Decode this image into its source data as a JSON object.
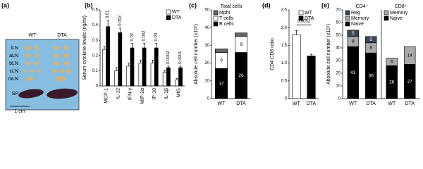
{
  "chart_data": [
    {
      "type": "image",
      "panel": "(a)",
      "columns": [
        "WT",
        "DTA"
      ],
      "rows": [
        "iLN",
        "aLN",
        "bLN",
        "cLN",
        "mLN",
        "SP"
      ],
      "scale_label": "1 cm"
    },
    {
      "type": "bar",
      "panel": "(b)",
      "ylabel": "Serum cytokine levels (ng/ml)",
      "categories": [
        "MCP-1",
        "IL-12",
        "IFN-γ",
        "MIP-1α",
        "IP-10",
        "IL-1β",
        "MIG"
      ],
      "series": [
        {
          "name": "WT",
          "color": "#ffffff",
          "values": [
            0.24,
            0.1,
            0.13,
            0.15,
            0.15,
            0.09,
            0.04
          ],
          "errors": [
            0.02,
            0.02,
            0.02,
            0.02,
            0.02,
            0.01,
            0.01
          ]
        },
        {
          "name": "DTA",
          "color": "#000000",
          "values": [
            0.39,
            0.35,
            0.25,
            0.25,
            0.25,
            0.12,
            0.12
          ],
          "errors": [
            0.04,
            0.03,
            0.03,
            0.03,
            0.03,
            0.01,
            0.01
          ]
        }
      ],
      "annotations": [
        "0.01",
        "0.002",
        "0.02",
        "0.002",
        "0.04",
        "0.0002",
        "0.0001"
      ],
      "ylim": [
        0,
        0.5
      ],
      "yticks": [
        0,
        0.1,
        0.2,
        0.3,
        0.4,
        0.5
      ]
    },
    {
      "type": "stacked_bar",
      "panel": "(c)",
      "title": "Total cells",
      "ylabel": "Absolute cell number (x10⁷)",
      "categories": [
        "WT",
        "DTA"
      ],
      "series": [
        {
          "name": "B cells",
          "color": "#000000",
          "values": [
            17,
            26
          ]
        },
        {
          "name": "T cells",
          "color": "#ffffff",
          "values": [
            9,
            9
          ]
        },
        {
          "name": "Mphi",
          "color": "#666666",
          "values": [
            2,
            2
          ],
          "value_labels": [
            "2",
            null
          ]
        }
      ],
      "ylim": [
        0,
        50
      ],
      "yticks": [
        0,
        10,
        20,
        30,
        40,
        50
      ]
    },
    {
      "type": "bar",
      "panel": "(d)",
      "ylabel": "CD4:CD8 ratio",
      "categories": [
        "WT",
        "DTA"
      ],
      "values": [
        1.8,
        1.2
      ],
      "errors": [
        0.12,
        0.05
      ],
      "colors": [
        "#ffffff",
        "#000000"
      ],
      "annotation": "0.0002",
      "ylim": [
        0,
        2.5
      ],
      "yticks": [
        0,
        0.5,
        {
          "value": 1,
          "label": "1.0"
        },
        1.5,
        {
          "value": 2,
          "label": "2.0"
        },
        2.5
      ]
    },
    {
      "type": "grouped_stacked_bar",
      "panel": "(e)",
      "ylabel": "Absolute cell number (x10⁷)",
      "groups": [
        {
          "name": "CD4⁺",
          "categories": [
            "WT",
            "DTA"
          ],
          "series": [
            {
              "name": "Naive",
              "color": "#000000",
              "values": [
                41,
                36
              ]
            },
            {
              "name": "Memory",
              "color": "#aaaaaa",
              "values": [
                8,
                8
              ]
            },
            {
              "name": "Reg",
              "color": "#3b4656",
              "values": [
                5,
                5
              ]
            }
          ]
        },
        {
          "name": "CD8⁺",
          "categories": [
            "WT",
            "DTA"
          ],
          "series": [
            {
              "name": "Naive",
              "color": "#000000",
              "values": [
                26,
                27
              ]
            },
            {
              "name": "Memory",
              "color": "#aaaaaa",
              "values": [
                6,
                14
              ]
            }
          ]
        }
      ],
      "ylim": [
        0,
        70
      ],
      "yticks": [
        0,
        10,
        20,
        30,
        40,
        50,
        60,
        70
      ]
    }
  ]
}
